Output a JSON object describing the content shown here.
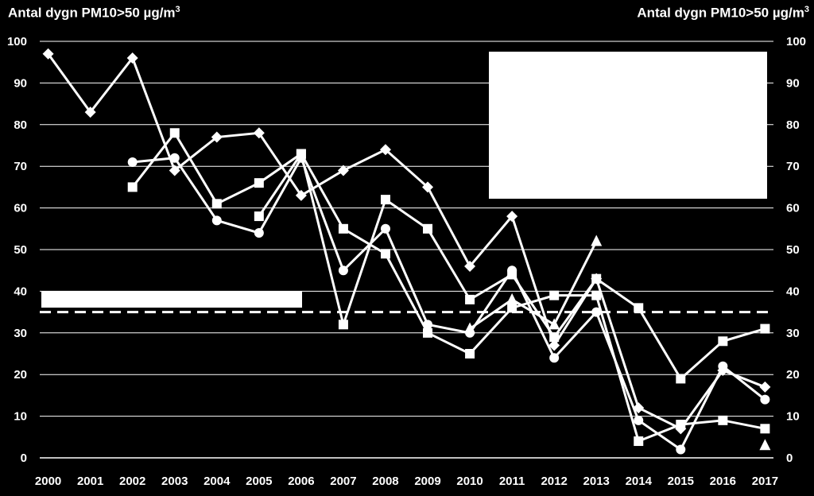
{
  "chart_data": {
    "type": "line",
    "ylabel_left": "Antal dygn PM10>50 µg/m",
    "ylabel_right": "Antal dygn PM10>50 µg/m",
    "ylabel_sup": "3",
    "x": [
      2000,
      2001,
      2002,
      2003,
      2004,
      2005,
      2006,
      2007,
      2008,
      2009,
      2010,
      2011,
      2012,
      2013,
      2014,
      2015,
      2016,
      2017
    ],
    "ylim": [
      0,
      100
    ],
    "yticks": [
      0,
      10,
      20,
      30,
      40,
      50,
      60,
      70,
      80,
      90,
      100
    ],
    "grid": true,
    "threshold": 35,
    "series": [
      {
        "marker": "diamond",
        "values": [
          97,
          83,
          96,
          69,
          77,
          78,
          63,
          69,
          74,
          65,
          46,
          58,
          27,
          43,
          12,
          7,
          21,
          17
        ]
      },
      {
        "marker": "circle",
        "values": [
          null,
          null,
          71,
          72,
          57,
          54,
          72,
          45,
          55,
          32,
          30,
          45,
          24,
          35,
          9,
          2,
          22,
          14
        ]
      },
      {
        "marker": "square",
        "values": [
          null,
          null,
          65,
          78,
          61,
          66,
          73,
          55,
          49,
          30,
          25,
          36,
          39,
          39,
          4,
          8,
          9,
          7
        ]
      },
      {
        "marker": "square",
        "values": [
          null,
          null,
          null,
          null,
          null,
          58,
          73,
          32,
          62,
          55,
          38,
          44,
          29,
          43,
          36,
          19,
          28,
          31
        ]
      },
      {
        "marker": "triangle",
        "values": [
          null,
          null,
          null,
          null,
          null,
          null,
          null,
          null,
          null,
          null,
          31,
          38,
          32,
          52,
          null,
          null,
          null,
          3
        ]
      }
    ]
  }
}
